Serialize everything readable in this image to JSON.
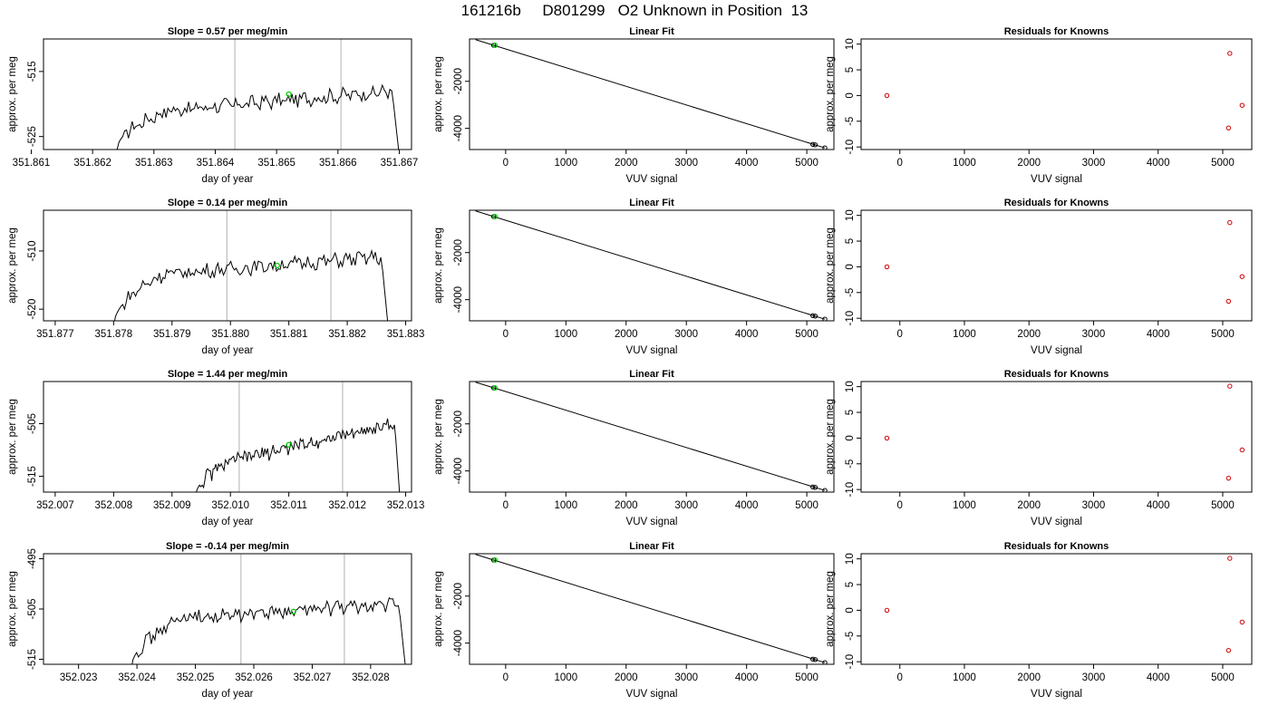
{
  "page_title": "161216b     D801299   O2 Unknown in Position  13",
  "chart_data": [
    {
      "panel": "row1-time",
      "type": "line",
      "title": "Slope =  0.57  per meg/min",
      "xlabel": "day of year",
      "ylabel": "approx. per meg",
      "xlim": [
        351.8612,
        351.8672
      ],
      "ylim": [
        -527,
        -510
      ],
      "xticks": [
        "351.861",
        "351.862",
        "351.863",
        "351.864",
        "351.865",
        "351.866",
        "351.867"
      ],
      "yticks": [
        "-515",
        "-525"
      ],
      "trace": {
        "x_start": 351.8624,
        "x_end": 351.867,
        "start_value": -527,
        "plateau_start": -521,
        "plateau_end": -518,
        "end_value": -528
      },
      "vlines": [
        351.86432,
        351.86605
      ],
      "marker": {
        "x": 351.8652,
        "y": -518.5
      },
      "colors": {
        "trace": "#000000",
        "vline": "#bebebe",
        "marker": "#00cc00"
      }
    },
    {
      "panel": "row1-fit",
      "type": "scatter",
      "title": "Linear Fit",
      "xlabel": "VUV signal",
      "ylabel": "approx. per meg",
      "xlim": [
        -600,
        5450
      ],
      "ylim": [
        -4900,
        -200
      ],
      "xticks": [
        "0",
        "1000",
        "2000",
        "3000",
        "4000",
        "5000"
      ],
      "yticks": [
        "-2000",
        "-4000"
      ],
      "line": [
        [
          -500,
          -230
        ],
        [
          5300,
          -4830
        ]
      ],
      "points": [
        {
          "x": -200,
          "y": -470
        },
        {
          "x": 5100,
          "y": -4680
        },
        {
          "x": 5140,
          "y": -4700
        },
        {
          "x": 5300,
          "y": -4830
        }
      ],
      "green_marker": {
        "x": -200,
        "y": -470
      },
      "colors": {
        "line": "#000000",
        "points": "#000000",
        "marker": "#00cc00"
      }
    },
    {
      "panel": "row1-residuals",
      "type": "scatter",
      "title": "Residuals for Knowns",
      "xlabel": "VUV signal",
      "ylabel": "approx. per meg",
      "xlim": [
        -600,
        5450
      ],
      "ylim": [
        -10.5,
        11
      ],
      "xticks": [
        "0",
        "1000",
        "2000",
        "3000",
        "4000",
        "5000"
      ],
      "yticks": [
        "10",
        "5",
        "0",
        "-5",
        "-10"
      ],
      "points": [
        {
          "x": -200,
          "y": 0
        },
        {
          "x": 5110,
          "y": 8.2
        },
        {
          "x": 5090,
          "y": -6.3
        },
        {
          "x": 5300,
          "y": -1.9
        }
      ],
      "colors": {
        "points": "#cc0000"
      }
    },
    {
      "panel": "row2-time",
      "type": "line",
      "title": "Slope =  0.14  per meg/min",
      "xlabel": "day of year",
      "ylabel": "approx. per meg",
      "xlim": [
        351.8768,
        351.8831
      ],
      "ylim": [
        -522,
        -503
      ],
      "xticks": [
        "351.877",
        "351.878",
        "351.879",
        "351.880",
        "351.881",
        "351.882",
        "351.883"
      ],
      "yticks": [
        "-510",
        "-520"
      ],
      "trace": {
        "x_start": 351.878,
        "x_end": 351.8827,
        "start_value": -523,
        "plateau_start": -514,
        "plateau_end": -511,
        "end_value": -523
      },
      "vlines": [
        351.87994,
        351.88172
      ],
      "marker": {
        "x": 351.8808,
        "y": -512.5
      },
      "colors": {
        "trace": "#000000",
        "vline": "#bebebe",
        "marker": "#00cc00"
      }
    },
    {
      "panel": "row2-fit",
      "type": "scatter",
      "title": "Linear Fit",
      "xlabel": "VUV signal",
      "ylabel": "approx. per meg",
      "xlim": [
        -600,
        5450
      ],
      "ylim": [
        -4900,
        -200
      ],
      "xticks": [
        "0",
        "1000",
        "2000",
        "3000",
        "4000",
        "5000"
      ],
      "yticks": [
        "-2000",
        "-4000"
      ],
      "line": [
        [
          -500,
          -230
        ],
        [
          5300,
          -4830
        ]
      ],
      "points": [
        {
          "x": -200,
          "y": -470
        },
        {
          "x": 5100,
          "y": -4680
        },
        {
          "x": 5140,
          "y": -4700
        },
        {
          "x": 5300,
          "y": -4830
        }
      ],
      "green_marker": {
        "x": -200,
        "y": -470
      },
      "colors": {
        "line": "#000000",
        "points": "#000000",
        "marker": "#00cc00"
      }
    },
    {
      "panel": "row2-residuals",
      "type": "scatter",
      "title": "Residuals for Knowns",
      "xlabel": "VUV signal",
      "ylabel": "approx. per meg",
      "xlim": [
        -600,
        5450
      ],
      "ylim": [
        -10.5,
        11
      ],
      "xticks": [
        "0",
        "1000",
        "2000",
        "3000",
        "4000",
        "5000"
      ],
      "yticks": [
        "10",
        "5",
        "0",
        "-5",
        "-10"
      ],
      "points": [
        {
          "x": -200,
          "y": 0
        },
        {
          "x": 5110,
          "y": 8.6
        },
        {
          "x": 5090,
          "y": -6.7
        },
        {
          "x": 5300,
          "y": -1.9
        }
      ],
      "colors": {
        "points": "#cc0000"
      }
    },
    {
      "panel": "row3-time",
      "type": "line",
      "title": "Slope =  1.44  per meg/min",
      "xlabel": "day of year",
      "ylabel": "approx. per meg",
      "xlim": [
        352.0068,
        352.0131
      ],
      "ylim": [
        -518,
        -497
      ],
      "xticks": [
        "352.007",
        "352.008",
        "352.009",
        "352.010",
        "352.011",
        "352.012",
        "352.013"
      ],
      "yticks": [
        "-505",
        "-515"
      ],
      "trace": {
        "x_start": 352.0094,
        "x_end": 352.0129,
        "start_value": -519,
        "plateau_start": -512,
        "plateau_end": -505,
        "end_value": -519
      },
      "vlines": [
        352.01015,
        352.01192
      ],
      "marker": {
        "x": 352.011,
        "y": -509
      },
      "colors": {
        "trace": "#000000",
        "vline": "#bebebe",
        "marker": "#00cc00"
      }
    },
    {
      "panel": "row3-fit",
      "type": "scatter",
      "title": "Linear Fit",
      "xlabel": "VUV signal",
      "ylabel": "approx. per meg",
      "xlim": [
        -600,
        5450
      ],
      "ylim": [
        -4900,
        -200
      ],
      "xticks": [
        "0",
        "1000",
        "2000",
        "3000",
        "4000",
        "5000"
      ],
      "yticks": [
        "-2000",
        "-4000"
      ],
      "line": [
        [
          -500,
          -230
        ],
        [
          5300,
          -4830
        ]
      ],
      "points": [
        {
          "x": -200,
          "y": -470
        },
        {
          "x": 5100,
          "y": -4680
        },
        {
          "x": 5140,
          "y": -4700
        },
        {
          "x": 5300,
          "y": -4830
        }
      ],
      "green_marker": {
        "x": -200,
        "y": -470
      },
      "colors": {
        "line": "#000000",
        "points": "#000000",
        "marker": "#00cc00"
      }
    },
    {
      "panel": "row3-residuals",
      "type": "scatter",
      "title": "Residuals for Knowns",
      "xlabel": "VUV signal",
      "ylabel": "approx. per meg",
      "xlim": [
        -600,
        5450
      ],
      "ylim": [
        -10.5,
        11
      ],
      "xticks": [
        "0",
        "1000",
        "2000",
        "3000",
        "4000",
        "5000"
      ],
      "yticks": [
        "10",
        "5",
        "0",
        "-5",
        "-10"
      ],
      "points": [
        {
          "x": -200,
          "y": 0
        },
        {
          "x": 5110,
          "y": 10.1
        },
        {
          "x": 5090,
          "y": -7.8
        },
        {
          "x": 5300,
          "y": -2.3
        }
      ],
      "colors": {
        "points": "#cc0000"
      }
    },
    {
      "panel": "row4-time",
      "type": "line",
      "title": "Slope =  -0.14  per meg/min",
      "xlabel": "day of year",
      "ylabel": "approx. per meg",
      "xlim": [
        352.0224,
        352.0287
      ],
      "ylim": [
        -516,
        -494
      ],
      "xticks": [
        "352.023",
        "352.024",
        "352.025",
        "352.026",
        "352.027",
        "352.028"
      ],
      "yticks": [
        "-495",
        "-505",
        "-515"
      ],
      "trace": {
        "x_start": 352.0239,
        "x_end": 352.0286,
        "start_value": -517,
        "plateau_start": -507,
        "plateau_end": -504,
        "end_value": -517
      },
      "vlines": [
        352.02578,
        352.02755
      ],
      "marker": {
        "x": 352.02668,
        "y": -505.5
      },
      "colors": {
        "trace": "#000000",
        "vline": "#bebebe",
        "marker": "#00cc00"
      }
    },
    {
      "panel": "row4-fit",
      "type": "scatter",
      "title": "Linear Fit",
      "xlabel": "VUV signal",
      "ylabel": "approx. per meg",
      "xlim": [
        -600,
        5450
      ],
      "ylim": [
        -4900,
        -200
      ],
      "xticks": [
        "0",
        "1000",
        "2000",
        "3000",
        "4000",
        "5000"
      ],
      "yticks": [
        "-2000",
        "-4000"
      ],
      "line": [
        [
          -500,
          -230
        ],
        [
          5300,
          -4830
        ]
      ],
      "points": [
        {
          "x": -200,
          "y": -470
        },
        {
          "x": 5100,
          "y": -4680
        },
        {
          "x": 5140,
          "y": -4700
        },
        {
          "x": 5300,
          "y": -4830
        }
      ],
      "green_marker": {
        "x": -200,
        "y": -470
      },
      "colors": {
        "line": "#000000",
        "points": "#000000",
        "marker": "#00cc00"
      }
    },
    {
      "panel": "row4-residuals",
      "type": "scatter",
      "title": "Residuals for Knowns",
      "xlabel": "VUV signal",
      "ylabel": "approx. per meg",
      "xlim": [
        -600,
        5450
      ],
      "ylim": [
        -10.5,
        11
      ],
      "xticks": [
        "0",
        "1000",
        "2000",
        "3000",
        "4000",
        "5000"
      ],
      "yticks": [
        "10",
        "5",
        "0",
        "-5",
        "-10"
      ],
      "points": [
        {
          "x": -200,
          "y": 0
        },
        {
          "x": 5110,
          "y": 10.1
        },
        {
          "x": 5090,
          "y": -7.8
        },
        {
          "x": 5300,
          "y": -2.3
        }
      ],
      "colors": {
        "points": "#cc0000"
      }
    }
  ]
}
